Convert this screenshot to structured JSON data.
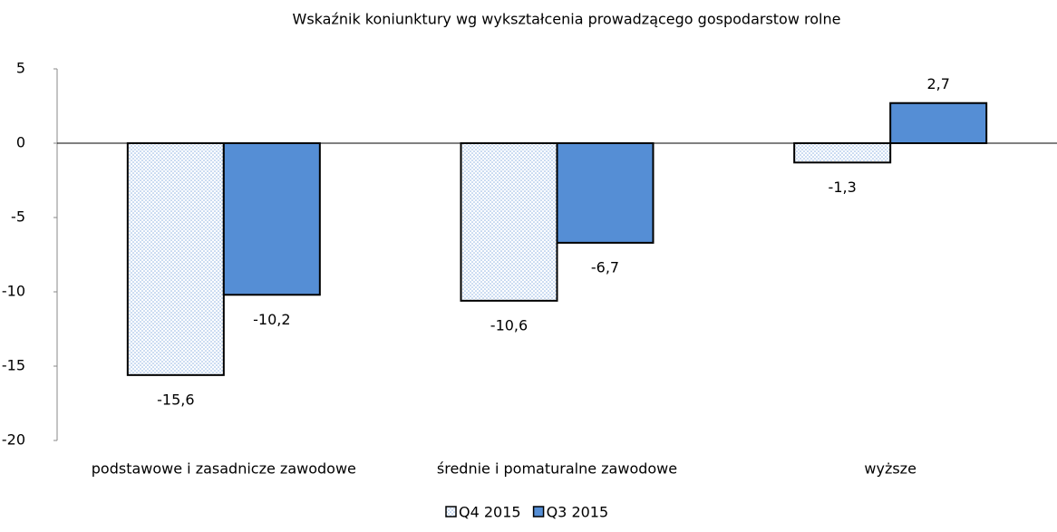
{
  "chart_data": {
    "type": "bar",
    "title": "Wskaźnik koniunktury wg wykształcenia prowadzącego gospodarstow rolne",
    "categories": [
      "podstawowe i zasadnicze zawodowe",
      "średnie i pomaturalne zawodowe",
      "wyższe"
    ],
    "series": [
      {
        "name": "Q4 2015",
        "color": "#8fb4e3",
        "pattern": "dotted",
        "values": [
          -15.6,
          -10.6,
          -1.3
        ],
        "value_labels": [
          "-15,6",
          "-10,6",
          "-1,3"
        ]
      },
      {
        "name": "Q3 2015",
        "color": "#558ed5",
        "values": [
          -10.2,
          -6.7,
          2.7
        ],
        "value_labels": [
          "-10,2",
          "-6,7",
          "2,7"
        ]
      }
    ],
    "ylim": [
      -20,
      5
    ],
    "yticks": [
      -20,
      -15,
      -10,
      -5,
      0,
      5
    ],
    "grid": false,
    "legend": "bottom"
  }
}
